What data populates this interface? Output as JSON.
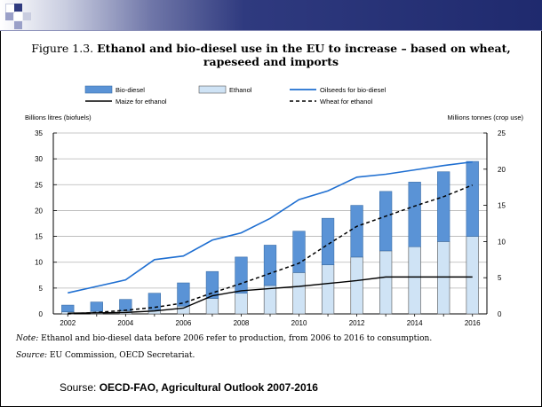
{
  "slide": {
    "figure_label": "Figure 1.3.",
    "figure_title": "Ethanol and bio-diesel use in the EU to increase – based on wheat, rapeseed and imports",
    "note_label": "Note:",
    "note_text": "Ethanol and bio-diesel data before 2006 refer to production, from 2006 to 2016 to consumption.",
    "source_label": "Source:",
    "source_text": "EU Commission, OECD Secretariat.",
    "footer_prefix": "Sourse: ",
    "footer_bold": "OECD-FAO, Agricultural Outlook 2007-2016"
  },
  "colors": {
    "biodiesel": "#5a93d6",
    "ethanol": "#cfe3f5",
    "oilseeds": "#1f6fd1",
    "maize": "#000000",
    "wheat": "#000000",
    "gridline": "#b5b5b5",
    "banner_dark": "#1f2a6e"
  },
  "chart_data": {
    "type": "bar",
    "left_axis_label": "Billions litres (biofuels)",
    "right_axis_label": "Millions tonnes (crop use)",
    "x": [
      2002,
      2003,
      2004,
      2005,
      2006,
      2007,
      2008,
      2009,
      2010,
      2011,
      2012,
      2013,
      2014,
      2015,
      2016
    ],
    "x_tick_labels": [
      "2002",
      "2004",
      "2006",
      "2008",
      "2010",
      "2012",
      "2014",
      "2016"
    ],
    "ylim_left": [
      0,
      35
    ],
    "yticks_left": [
      0,
      5,
      10,
      15,
      20,
      25,
      30,
      35
    ],
    "ylim_right": [
      0,
      25
    ],
    "yticks_right": [
      0,
      5,
      10,
      15,
      20,
      25
    ],
    "grid": true,
    "legend": [
      {
        "name": "Bio-diesel",
        "kind": "bar"
      },
      {
        "name": "Ethanol",
        "kind": "bar"
      },
      {
        "name": "Oilseeds for bio-diesel",
        "kind": "line-blue"
      },
      {
        "name": "Maize for ethanol",
        "kind": "line-black"
      },
      {
        "name": "Wheat for ethanol",
        "kind": "line-dashed"
      }
    ],
    "bar_series": [
      {
        "name": "Ethanol",
        "axis": "left",
        "values": [
          0.4,
          0.5,
          0.6,
          0.8,
          1.5,
          3.0,
          4.0,
          5.5,
          8.0,
          9.5,
          11.0,
          12.2,
          13.0,
          14.0,
          15.0
        ]
      },
      {
        "name": "Bio-diesel",
        "axis": "left",
        "values": [
          1.3,
          1.8,
          2.2,
          3.2,
          4.5,
          5.2,
          7.0,
          7.8,
          8.0,
          9.0,
          10.0,
          11.5,
          12.5,
          13.5,
          14.5
        ]
      }
    ],
    "line_series": [
      {
        "name": "Oilseeds for bio-diesel",
        "axis": "right",
        "values": [
          2.9,
          3.8,
          4.7,
          7.5,
          8.0,
          10.2,
          11.2,
          13.2,
          15.8,
          17.0,
          18.9,
          19.3,
          19.9,
          20.5,
          21.0
        ]
      },
      {
        "name": "Maize for ethanol",
        "axis": "right",
        "values": [
          0.1,
          0.15,
          0.2,
          0.4,
          0.8,
          2.5,
          3.2,
          3.5,
          3.8,
          4.2,
          4.6,
          5.1,
          5.1,
          5.1,
          5.1
        ]
      },
      {
        "name": "Wheat for ethanol",
        "axis": "right",
        "values": [
          0.0,
          0.2,
          0.5,
          0.9,
          1.5,
          2.9,
          4.2,
          5.6,
          7.0,
          9.6,
          12.1,
          13.5,
          14.9,
          16.2,
          17.8
        ]
      }
    ]
  }
}
